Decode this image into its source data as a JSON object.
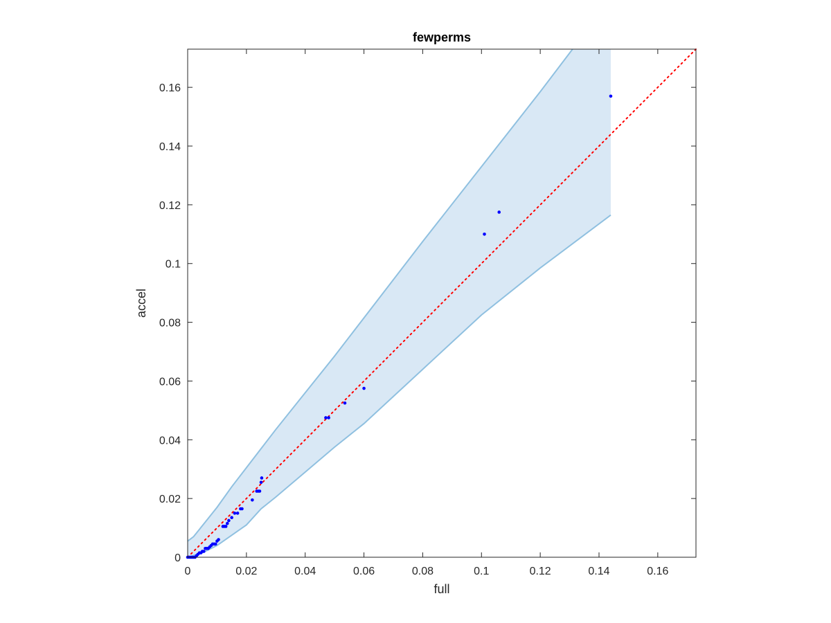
{
  "chart_data": {
    "type": "scatter",
    "title": "fewperms",
    "xlabel": "full",
    "ylabel": "accel",
    "xlim": [
      0,
      0.173
    ],
    "ylim": [
      0,
      0.173
    ],
    "xticks": [
      0,
      0.02,
      0.04,
      0.06,
      0.08,
      0.1,
      0.12,
      0.14,
      0.16
    ],
    "yticks": [
      0,
      0.02,
      0.04,
      0.06,
      0.08,
      0.1,
      0.12,
      0.14,
      0.16
    ],
    "xtick_labels": [
      "0",
      "0.02",
      "0.04",
      "0.06",
      "0.08",
      "0.1",
      "0.12",
      "0.14",
      "0.16"
    ],
    "ytick_labels": [
      "0",
      "0.02",
      "0.04",
      "0.06",
      "0.08",
      "0.1",
      "0.12",
      "0.14",
      "0.16"
    ],
    "grid": false,
    "colors": {
      "points": "#0000ff",
      "reference_line": "#ff0000",
      "band_fill": "#d9e8f5",
      "band_edge": "#8fc0e0",
      "axes": "#262626"
    },
    "reference_line": {
      "x": [
        0,
        0.173
      ],
      "y": [
        0,
        0.173
      ],
      "style": "dotted"
    },
    "band": {
      "upper": [
        [
          0,
          0.0055
        ],
        [
          0.002,
          0.007
        ],
        [
          0.004,
          0.0095
        ],
        [
          0.006,
          0.012
        ],
        [
          0.008,
          0.0145
        ],
        [
          0.01,
          0.017
        ],
        [
          0.015,
          0.024
        ],
        [
          0.02,
          0.0305
        ],
        [
          0.025,
          0.037
        ],
        [
          0.03,
          0.0435
        ],
        [
          0.04,
          0.056
        ],
        [
          0.05,
          0.0685
        ],
        [
          0.06,
          0.0815
        ],
        [
          0.08,
          0.1075
        ],
        [
          0.1,
          0.133
        ],
        [
          0.12,
          0.1585
        ],
        [
          0.131,
          0.173
        ],
        [
          0.144,
          0.173
        ]
      ],
      "lower": [
        [
          0,
          0.0
        ],
        [
          0.005,
          0.0015
        ],
        [
          0.01,
          0.004
        ],
        [
          0.015,
          0.0075
        ],
        [
          0.02,
          0.011
        ],
        [
          0.025,
          0.0165
        ],
        [
          0.03,
          0.0205
        ],
        [
          0.04,
          0.029
        ],
        [
          0.05,
          0.0375
        ],
        [
          0.06,
          0.0455
        ],
        [
          0.08,
          0.064
        ],
        [
          0.1,
          0.0825
        ],
        [
          0.12,
          0.0985
        ],
        [
          0.144,
          0.1165
        ]
      ]
    },
    "series": [
      {
        "x": [
          0,
          0.0005,
          0.001,
          0.0015,
          0.002,
          0.0025,
          0.003,
          0.0035,
          0.004,
          0.0045,
          0.005,
          0.0055,
          0.006,
          0.0065,
          0.007,
          0.0075,
          0.008,
          0.0085,
          0.009,
          0.0095,
          0.01,
          0.0105,
          0.012,
          0.0125,
          0.013,
          0.0135,
          0.014,
          0.015,
          0.016,
          0.017,
          0.018,
          0.0185,
          0.022,
          0.0235,
          0.024,
          0.0245,
          0.025,
          0.0252,
          0.047,
          0.048,
          0.0535,
          0.06,
          0.101,
          0.106,
          0.144
        ],
        "y": [
          0,
          0,
          0,
          0,
          0,
          0,
          0.0005,
          0.001,
          0.0015,
          0.0015,
          0.002,
          0.002,
          0.003,
          0.003,
          0.003,
          0.0035,
          0.004,
          0.0045,
          0.0045,
          0.0045,
          0.0055,
          0.006,
          0.0105,
          0.0105,
          0.0105,
          0.0115,
          0.0125,
          0.0135,
          0.015,
          0.015,
          0.0165,
          0.0165,
          0.0195,
          0.0225,
          0.0225,
          0.0225,
          0.0255,
          0.027,
          0.0475,
          0.0475,
          0.0525,
          0.0575,
          0.11,
          0.1175,
          0.157
        ]
      }
    ]
  }
}
